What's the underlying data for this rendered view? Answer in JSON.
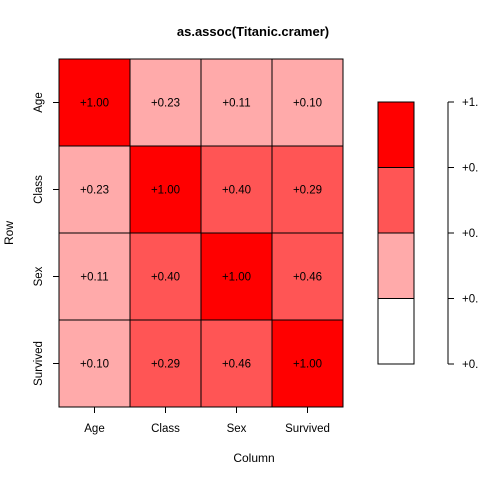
{
  "chart_data": {
    "type": "heatmap",
    "title": "as.assoc(Titanic.cramer)",
    "xlabel": "Column",
    "ylabel": "Row",
    "columns": [
      "Age",
      "Class",
      "Sex",
      "Survived"
    ],
    "rows": [
      "Age",
      "Class",
      "Sex",
      "Survived"
    ],
    "values": [
      [
        1.0,
        0.23,
        0.11,
        0.1
      ],
      [
        0.23,
        1.0,
        0.4,
        0.29
      ],
      [
        0.11,
        0.4,
        1.0,
        0.46
      ],
      [
        0.1,
        0.29,
        0.46,
        1.0
      ]
    ],
    "cell_labels": [
      [
        "+1.00",
        "+0.23",
        "+0.11",
        "+0.10"
      ],
      [
        "+0.23",
        "+1.00",
        "+0.40",
        "+0.29"
      ],
      [
        "+0.11",
        "+0.40",
        "+1.00",
        "+0.46"
      ],
      [
        "+0.10",
        "+0.29",
        "+0.46",
        "+1.00"
      ]
    ],
    "color_bins": [
      {
        "min": 0.75,
        "max": 1.0,
        "color": "#ff0000"
      },
      {
        "min": 0.5,
        "max": 0.75,
        "color": "#ff5555"
      },
      {
        "min": 0.25,
        "max": 0.5,
        "color": "#ff5555"
      },
      {
        "min": 0.0,
        "max": 0.25,
        "color": "#ffaaaa"
      }
    ],
    "legend": {
      "position": "right",
      "segments_top_to_bottom": [
        "#ff0000",
        "#ff5555",
        "#ffaaaa",
        "#ffffff"
      ],
      "tick_labels_top_to_bottom": [
        "+1.",
        "+0.",
        "+0.",
        "+0.",
        "+0."
      ]
    },
    "grid": false
  },
  "colors": {
    "strong": "#ff0000",
    "medium": "#ff5555",
    "light": "#ffaaaa",
    "none": "#ffffff",
    "border": "#000000"
  }
}
